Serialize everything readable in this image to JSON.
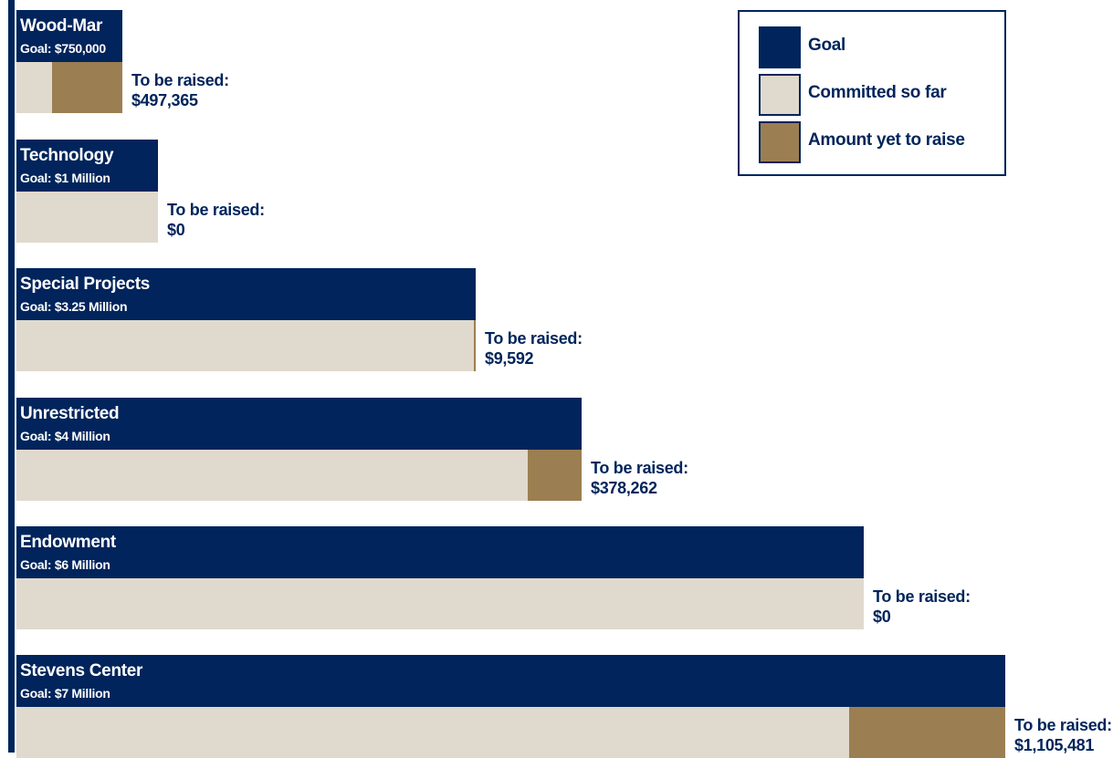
{
  "colors": {
    "goal": "#00245b",
    "committed": "#e0d9cd",
    "remaining": "#9b7f52",
    "text": "#00245b"
  },
  "legend": {
    "items": [
      {
        "label": "Goal",
        "key": "goal"
      },
      {
        "label": "Committed so far",
        "key": "committed"
      },
      {
        "label": "Amount yet to raise",
        "key": "remaining"
      }
    ]
  },
  "chart_data": {
    "type": "bar",
    "orientation": "horizontal",
    "stacked": true,
    "categories": [
      "Wood-Mar",
      "Technology",
      "Special Projects",
      "Unrestricted",
      "Endowment",
      "Stevens Center"
    ],
    "goal_labels": [
      "Goal: $750,000",
      "Goal: $1 Million",
      "Goal: $3.25 Million",
      "Goal: $4 Million",
      "Goal: $6 Million",
      "Goal: $7 Million"
    ],
    "raise_label": "To be raised:",
    "raise_values": [
      "$497,365",
      "$0",
      "$9,592",
      "$378,262",
      "$0",
      "$1,105,481"
    ],
    "series": [
      {
        "name": "Goal",
        "values": [
          750000,
          1000000,
          3250000,
          4000000,
          6000000,
          7000000
        ]
      },
      {
        "name": "Committed so far",
        "values": [
          252635,
          1000000,
          3240408,
          3621738,
          6000000,
          5894519
        ]
      },
      {
        "name": "Amount yet to raise",
        "values": [
          497365,
          0,
          9592,
          378262,
          0,
          1105481
        ]
      }
    ],
    "legend_position": "top-right"
  }
}
